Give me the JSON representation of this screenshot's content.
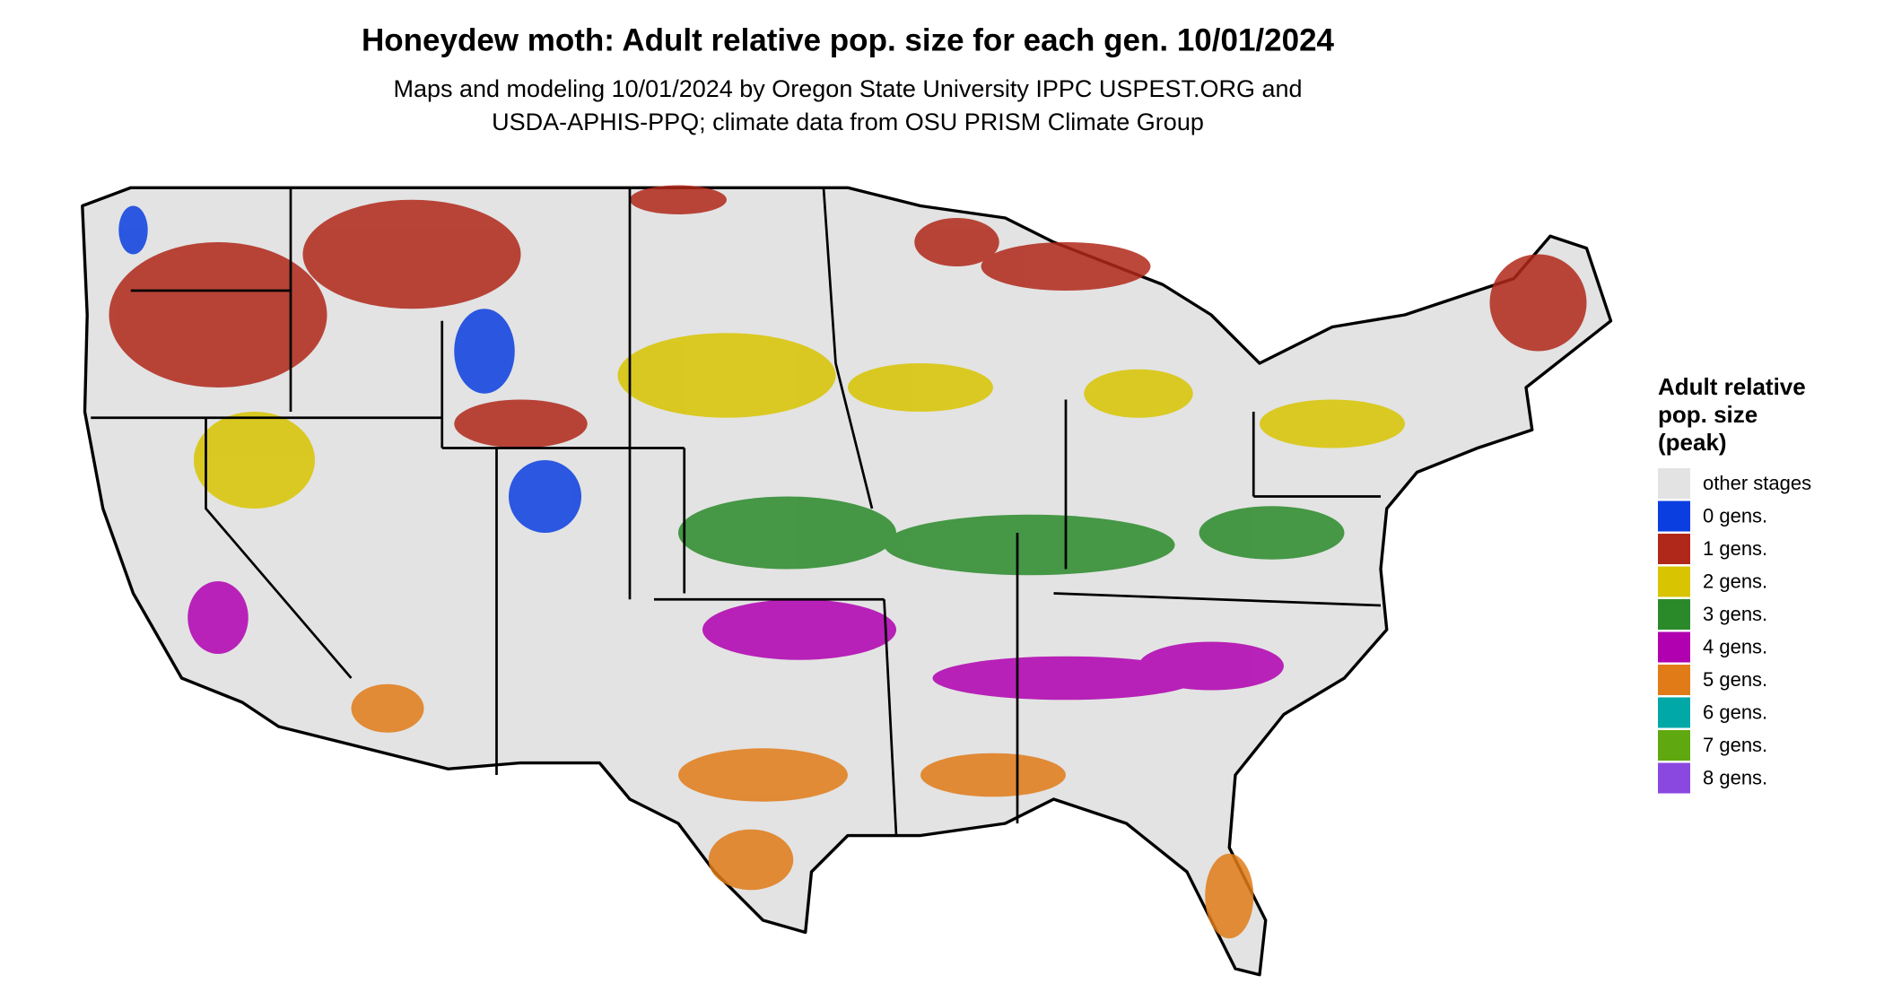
{
  "title": "Honeydew moth: Adult relative pop. size for each gen. 10/01/2024",
  "subtitle": [
    "Maps and modeling 10/01/2024 by Oregon State University IPPC USPEST.ORG and",
    "USDA-APHIS-PPQ; climate data from OSU PRISM Climate Group"
  ],
  "legend": {
    "title": [
      "Adult relative",
      "pop. size",
      "(peak)"
    ],
    "items": [
      {
        "label": "other stages",
        "color": "#e3e3e3"
      },
      {
        "label": "0 gens.",
        "color": "#0a3ee0"
      },
      {
        "label": "1 gens.",
        "color": "#b0281a"
      },
      {
        "label": "2 gens.",
        "color": "#d8c400"
      },
      {
        "label": "3 gens.",
        "color": "#2a8a2a"
      },
      {
        "label": "4 gens.",
        "color": "#b000b0"
      },
      {
        "label": "5 gens.",
        "color": "#e07b18"
      },
      {
        "label": "6 gens.",
        "color": "#00a8a8"
      },
      {
        "label": "7 gens.",
        "color": "#60a810"
      },
      {
        "label": "8 gens.",
        "color": "#8a48e0"
      }
    ]
  }
}
